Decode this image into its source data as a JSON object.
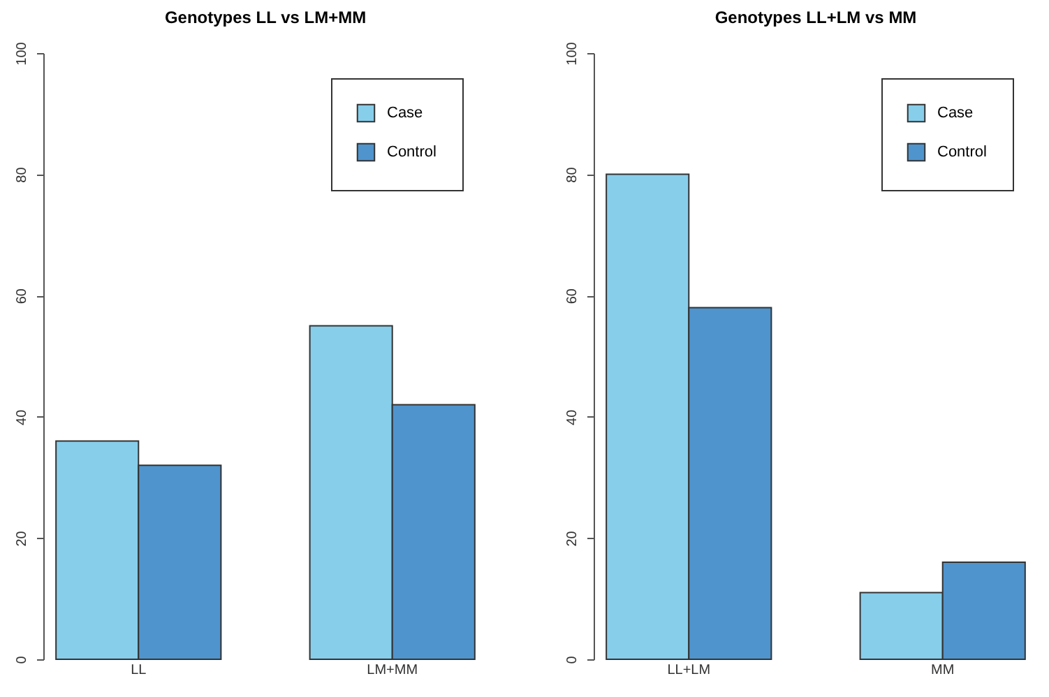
{
  "chart_data": [
    {
      "type": "bar",
      "title": "Genotypes LL vs LM+MM",
      "categories": [
        "LL",
        "LM+MM"
      ],
      "series": [
        {
          "name": "Case",
          "color": "#87ceeb",
          "values": [
            36,
            55
          ]
        },
        {
          "name": "Control",
          "color": "#4f94cd",
          "values": [
            32,
            42
          ]
        }
      ],
      "ylim": [
        0,
        100
      ],
      "yticks": [
        0,
        20,
        40,
        60,
        80,
        100
      ],
      "grid": false,
      "legend": "top right"
    },
    {
      "type": "bar",
      "title": "Genotypes LL+LM vs MM",
      "categories": [
        "LL+LM",
        "MM"
      ],
      "series": [
        {
          "name": "Case",
          "color": "#87ceeb",
          "values": [
            80,
            11
          ]
        },
        {
          "name": "Control",
          "color": "#4f94cd",
          "values": [
            58,
            16
          ]
        }
      ],
      "ylim": [
        0,
        100
      ],
      "yticks": [
        0,
        20,
        40,
        60,
        80,
        100
      ],
      "grid": false,
      "legend": "top right"
    }
  ]
}
